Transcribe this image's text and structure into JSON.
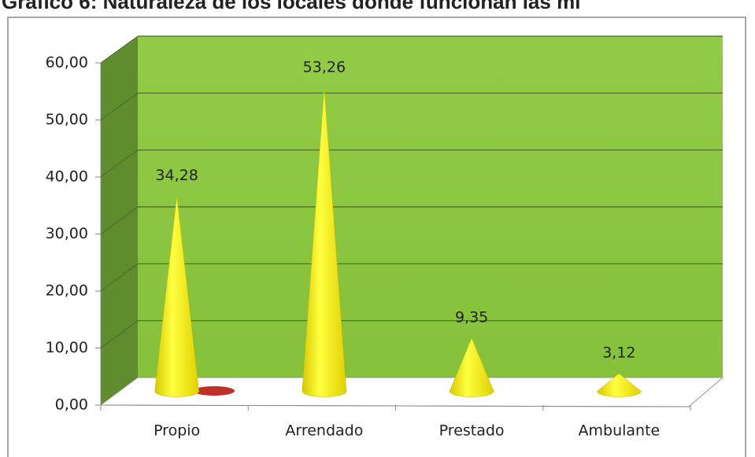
{
  "chart_data": {
    "type": "cone",
    "title": "Gráfico 6: Naturaleza  de los locales donde funcionan las mi",
    "categories": [
      "Propio",
      "Arrendado",
      "Prestado",
      "Ambulante"
    ],
    "values": [
      34.28,
      53.26,
      9.35,
      3.12
    ],
    "value_labels": [
      "34,28",
      "53,26",
      "9,35",
      "3,12"
    ],
    "color": "#ffff00",
    "ylim": [
      0,
      60
    ],
    "yticks": [
      {
        "value": 0,
        "label": "0,00"
      },
      {
        "value": 10,
        "label": "10,00"
      },
      {
        "value": 20,
        "label": "20,00"
      },
      {
        "value": 30,
        "label": "30,00"
      },
      {
        "value": 40,
        "label": "40,00"
      },
      {
        "value": 50,
        "label": "50,00"
      },
      {
        "value": 60,
        "label": "60,00"
      }
    ],
    "grid": true
  }
}
